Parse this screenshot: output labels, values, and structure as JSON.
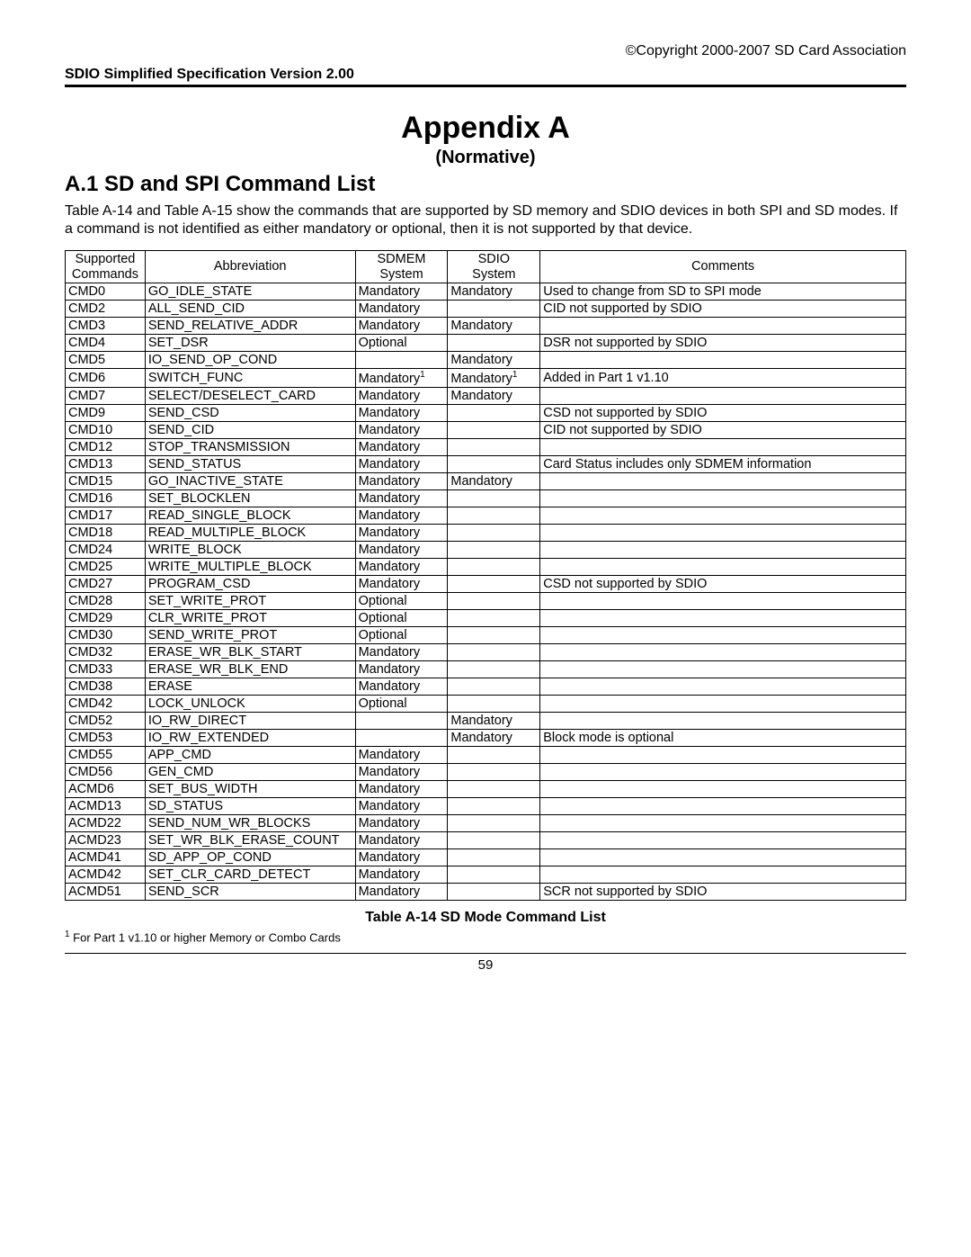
{
  "header": {
    "copyright": "©Copyright 2000-2007 SD Card Association",
    "spec_version": "SDIO Simplified Specification Version 2.00"
  },
  "titles": {
    "appendix": "Appendix A",
    "normative": "(Normative)",
    "section": "A.1 SD and SPI Command List"
  },
  "body": "Table A-14 and Table A-15 show the commands that are supported by SD memory and SDIO devices in both SPI and SD modes. If a command is not identified as either mandatory or optional, then it is not supported by that device.",
  "table": {
    "headers": {
      "cmd_l1": "Supported",
      "cmd_l2": "Commands",
      "abbr": "Abbreviation",
      "sdmem_l1": "SDMEM",
      "sdmem_l2": "System",
      "sdio_l1": "SDIO",
      "sdio_l2": "System",
      "comments": "Comments"
    },
    "rows": [
      {
        "cmd": "CMD0",
        "abbr": "GO_IDLE_STATE",
        "sdmem": "Mandatory",
        "sdio": "Mandatory",
        "comm": "Used to change from SD to SPI mode"
      },
      {
        "cmd": "CMD2",
        "abbr": "ALL_SEND_CID",
        "sdmem": "Mandatory",
        "sdio": "",
        "comm": "CID not supported by SDIO"
      },
      {
        "cmd": "CMD3",
        "abbr": "SEND_RELATIVE_ADDR",
        "sdmem": "Mandatory",
        "sdio": "Mandatory",
        "comm": ""
      },
      {
        "cmd": "CMD4",
        "abbr": "SET_DSR",
        "sdmem": "Optional",
        "sdio": "",
        "comm": "DSR not supported by SDIO"
      },
      {
        "cmd": "CMD5",
        "abbr": "IO_SEND_OP_COND",
        "sdmem": "",
        "sdio": "Mandatory",
        "comm": ""
      },
      {
        "cmd": "CMD6",
        "abbr": "SWITCH_FUNC",
        "sdmem": "Mandatory",
        "sdmem_sup": "1",
        "sdio": "Mandatory",
        "sdio_sup": "1",
        "comm": "Added in Part 1 v1.10"
      },
      {
        "cmd": "CMD7",
        "abbr": "SELECT/DESELECT_CARD",
        "sdmem": "Mandatory",
        "sdio": "Mandatory",
        "comm": ""
      },
      {
        "cmd": "CMD9",
        "abbr": "SEND_CSD",
        "sdmem": "Mandatory",
        "sdio": "",
        "comm": "CSD not supported by SDIO"
      },
      {
        "cmd": "CMD10",
        "abbr": "SEND_CID",
        "sdmem": "Mandatory",
        "sdio": "",
        "comm": "CID not supported by SDIO"
      },
      {
        "cmd": "CMD12",
        "abbr": "STOP_TRANSMISSION",
        "sdmem": "Mandatory",
        "sdio": "",
        "comm": ""
      },
      {
        "cmd": "CMD13",
        "abbr": "SEND_STATUS",
        "sdmem": "Mandatory",
        "sdio": "",
        "comm": "Card Status includes only SDMEM information"
      },
      {
        "cmd": "CMD15",
        "abbr": "GO_INACTIVE_STATE",
        "sdmem": "Mandatory",
        "sdio": "Mandatory",
        "comm": ""
      },
      {
        "cmd": "CMD16",
        "abbr": "SET_BLOCKLEN",
        "sdmem": "Mandatory",
        "sdio": "",
        "comm": ""
      },
      {
        "cmd": "CMD17",
        "abbr": "READ_SINGLE_BLOCK",
        "sdmem": "Mandatory",
        "sdio": "",
        "comm": ""
      },
      {
        "cmd": "CMD18",
        "abbr": "READ_MULTIPLE_BLOCK",
        "sdmem": "Mandatory",
        "sdio": "",
        "comm": ""
      },
      {
        "cmd": "CMD24",
        "abbr": "WRITE_BLOCK",
        "sdmem": "Mandatory",
        "sdio": "",
        "comm": ""
      },
      {
        "cmd": "CMD25",
        "abbr": "WRITE_MULTIPLE_BLOCK",
        "sdmem": "Mandatory",
        "sdio": "",
        "comm": ""
      },
      {
        "cmd": "CMD27",
        "abbr": "PROGRAM_CSD",
        "sdmem": "Mandatory",
        "sdio": "",
        "comm": "CSD not supported by SDIO"
      },
      {
        "cmd": "CMD28",
        "abbr": "SET_WRITE_PROT",
        "sdmem": "Optional",
        "sdio": "",
        "comm": ""
      },
      {
        "cmd": "CMD29",
        "abbr": "CLR_WRITE_PROT",
        "sdmem": "Optional",
        "sdio": "",
        "comm": ""
      },
      {
        "cmd": "CMD30",
        "abbr": "SEND_WRITE_PROT",
        "sdmem": "Optional",
        "sdio": "",
        "comm": ""
      },
      {
        "cmd": "CMD32",
        "abbr": "ERASE_WR_BLK_START",
        "sdmem": "Mandatory",
        "sdio": "",
        "comm": ""
      },
      {
        "cmd": "CMD33",
        "abbr": "ERASE_WR_BLK_END",
        "sdmem": "Mandatory",
        "sdio": "",
        "comm": ""
      },
      {
        "cmd": "CMD38",
        "abbr": "ERASE",
        "sdmem": "Mandatory",
        "sdio": "",
        "comm": ""
      },
      {
        "cmd": "CMD42",
        "abbr": "LOCK_UNLOCK",
        "sdmem": "Optional",
        "sdio": "",
        "comm": ""
      },
      {
        "cmd": "CMD52",
        "abbr": "IO_RW_DIRECT",
        "sdmem": "",
        "sdio": "Mandatory",
        "comm": ""
      },
      {
        "cmd": "CMD53",
        "abbr": "IO_RW_EXTENDED",
        "sdmem": "",
        "sdio": "Mandatory",
        "comm": "Block mode is optional"
      },
      {
        "cmd": "CMD55",
        "abbr": "APP_CMD",
        "sdmem": "Mandatory",
        "sdio": "",
        "comm": ""
      },
      {
        "cmd": "CMD56",
        "abbr": "GEN_CMD",
        "sdmem": "Mandatory",
        "sdio": "",
        "comm": ""
      },
      {
        "cmd": "ACMD6",
        "abbr": "SET_BUS_WIDTH",
        "sdmem": "Mandatory",
        "sdio": "",
        "comm": ""
      },
      {
        "cmd": "ACMD13",
        "abbr": "SD_STATUS",
        "sdmem": "Mandatory",
        "sdio": "",
        "comm": ""
      },
      {
        "cmd": "ACMD22",
        "abbr": "SEND_NUM_WR_BLOCKS",
        "sdmem": "Mandatory",
        "sdio": "",
        "comm": ""
      },
      {
        "cmd": "ACMD23",
        "abbr": "SET_WR_BLK_ERASE_COUNT",
        "sdmem": "Mandatory",
        "sdio": "",
        "comm": ""
      },
      {
        "cmd": "ACMD41",
        "abbr": "SD_APP_OP_COND",
        "sdmem": "Mandatory",
        "sdio": "",
        "comm": ""
      },
      {
        "cmd": "ACMD42",
        "abbr": "SET_CLR_CARD_DETECT",
        "sdmem": "Mandatory",
        "sdio": "",
        "comm": ""
      },
      {
        "cmd": "ACMD51",
        "abbr": "SEND_SCR",
        "sdmem": "Mandatory",
        "sdio": "",
        "comm": "SCR not supported by SDIO"
      }
    ],
    "caption": "Table A-14 SD Mode Command List"
  },
  "footnote": {
    "marker": "1",
    "text": " For Part 1 v1.10 or higher Memory or Combo Cards"
  },
  "page_number": "59"
}
